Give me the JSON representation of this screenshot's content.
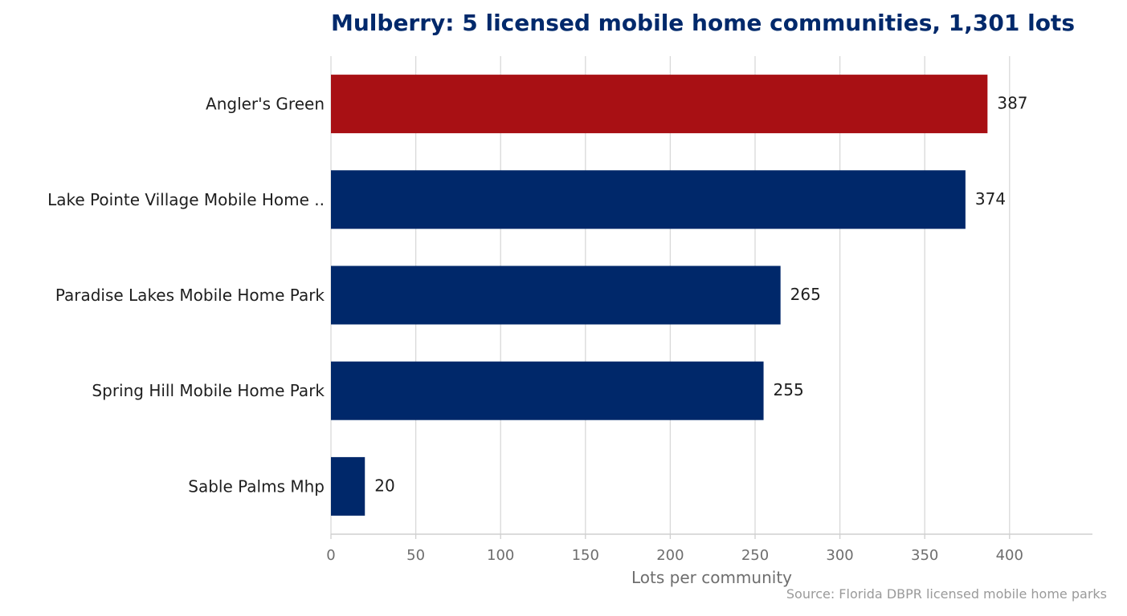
{
  "chart_data": {
    "type": "bar",
    "orientation": "horizontal",
    "title": "Mulberry: 5 licensed mobile home communities, 1,301 lots",
    "xlabel": "Lots per community",
    "ylabel": "",
    "categories": [
      "Angler's Green",
      "Lake Pointe Village Mobile Home ..",
      "Paradise Lakes Mobile Home Park",
      "Spring Hill Mobile Home Park",
      "Sable Palms Mhp"
    ],
    "values": [
      387,
      374,
      265,
      255,
      20
    ],
    "value_labels": [
      "387",
      "374",
      "265",
      "255",
      "20"
    ],
    "xlim": [
      0,
      449
    ],
    "xticks": [
      0,
      50,
      100,
      150,
      200,
      250,
      300,
      350,
      400
    ],
    "xtick_labels": [
      "0",
      "50",
      "100",
      "150",
      "200",
      "250",
      "300",
      "350",
      "400"
    ],
    "grid": "vertical",
    "legend": "none",
    "highlight_index": 0,
    "colors": {
      "highlight": "#a81014",
      "bar": "#00286a",
      "title": "#00296b",
      "grid": "#d8d8d8",
      "axis": "#cfcfcf",
      "tick_text": "#6e6e6e",
      "label_text": "#1e1e1e",
      "source_text": "#9a9a9a"
    },
    "source": "Source: Florida DBPR licensed mobile home parks"
  }
}
